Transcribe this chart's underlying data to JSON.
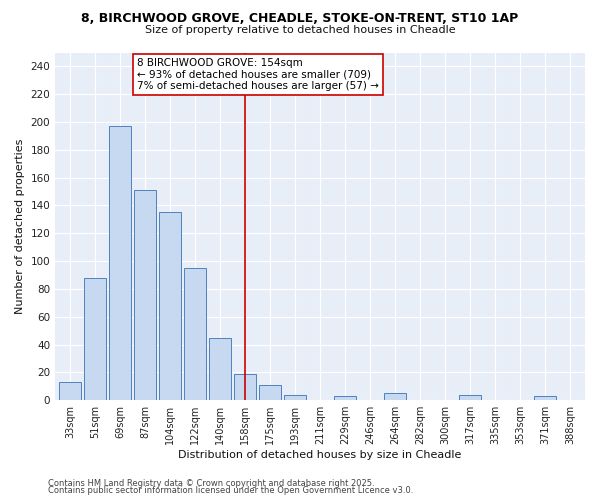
{
  "title1": "8, BIRCHWOOD GROVE, CHEADLE, STOKE-ON-TRENT, ST10 1AP",
  "title2": "Size of property relative to detached houses in Cheadle",
  "xlabel": "Distribution of detached houses by size in Cheadle",
  "ylabel": "Number of detached properties",
  "bin_labels": [
    "33sqm",
    "51sqm",
    "69sqm",
    "87sqm",
    "104sqm",
    "122sqm",
    "140sqm",
    "158sqm",
    "175sqm",
    "193sqm",
    "211sqm",
    "229sqm",
    "246sqm",
    "264sqm",
    "282sqm",
    "300sqm",
    "317sqm",
    "335sqm",
    "353sqm",
    "371sqm",
    "388sqm"
  ],
  "bar_values": [
    13,
    88,
    197,
    151,
    135,
    95,
    45,
    19,
    11,
    4,
    0,
    3,
    0,
    5,
    0,
    0,
    4,
    0,
    0,
    3,
    0
  ],
  "bar_color": "#c6d9f0",
  "bar_edgecolor": "#4f81bd",
  "vline_x_index": 7.0,
  "vline_color": "#cc0000",
  "annotation_title": "8 BIRCHWOOD GROVE: 154sqm",
  "annotation_line1": "← 93% of detached houses are smaller (709)",
  "annotation_line2": "7% of semi-detached houses are larger (57) →",
  "ylim": [
    0,
    250
  ],
  "yticks": [
    0,
    20,
    40,
    60,
    80,
    100,
    120,
    140,
    160,
    180,
    200,
    220,
    240
  ],
  "footer1": "Contains HM Land Registry data © Crown copyright and database right 2025.",
  "footer2": "Contains public sector information licensed under the Open Government Licence v3.0.",
  "bg_color": "#ffffff",
  "plot_bg_color": "#e8eef8"
}
